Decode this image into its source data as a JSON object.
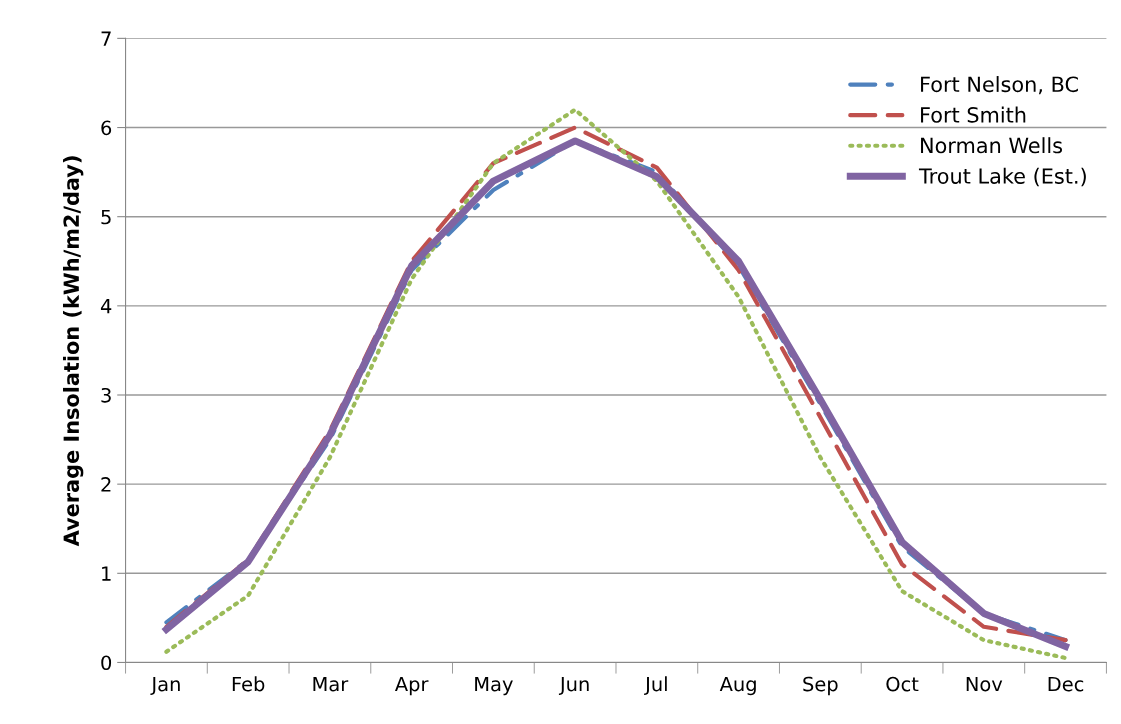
{
  "chart_data": {
    "type": "line",
    "ylabel": "Average Insolation (kWh/m2/day)",
    "categories": [
      "Jan",
      "Feb",
      "Mar",
      "Apr",
      "May",
      "Jun",
      "Jul",
      "Aug",
      "Sep",
      "Oct",
      "Nov",
      "Dec"
    ],
    "series": [
      {
        "name": "Fort Nelson, BC",
        "color": "#4f81bd",
        "line_style": "dashdot",
        "values": [
          0.45,
          1.15,
          2.5,
          4.4,
          5.3,
          5.85,
          5.5,
          4.45,
          2.9,
          1.3,
          0.55,
          0.25
        ]
      },
      {
        "name": "Fort Smith",
        "color": "#c0504d",
        "line_style": "dashed",
        "values": [
          0.4,
          1.15,
          2.6,
          4.5,
          5.6,
          6.0,
          5.55,
          4.4,
          2.75,
          1.1,
          0.4,
          0.25
        ]
      },
      {
        "name": "Norman Wells",
        "color": "#9bbb59",
        "line_style": "dotted",
        "values": [
          0.12,
          0.75,
          2.3,
          4.3,
          5.6,
          6.2,
          5.4,
          4.1,
          2.3,
          0.8,
          0.25,
          0.05
        ]
      },
      {
        "name": "Trout Lake (Est.)",
        "color": "#8064a2",
        "line_style": "solid",
        "values": [
          0.37,
          1.13,
          2.55,
          4.45,
          5.4,
          5.85,
          5.45,
          4.5,
          2.95,
          1.35,
          0.55,
          0.18
        ]
      }
    ],
    "ylim": [
      0,
      7
    ],
    "yticks": [
      0,
      1,
      2,
      3,
      4,
      5,
      6,
      7
    ],
    "grid": "y",
    "legend": "right",
    "marker": "none"
  }
}
